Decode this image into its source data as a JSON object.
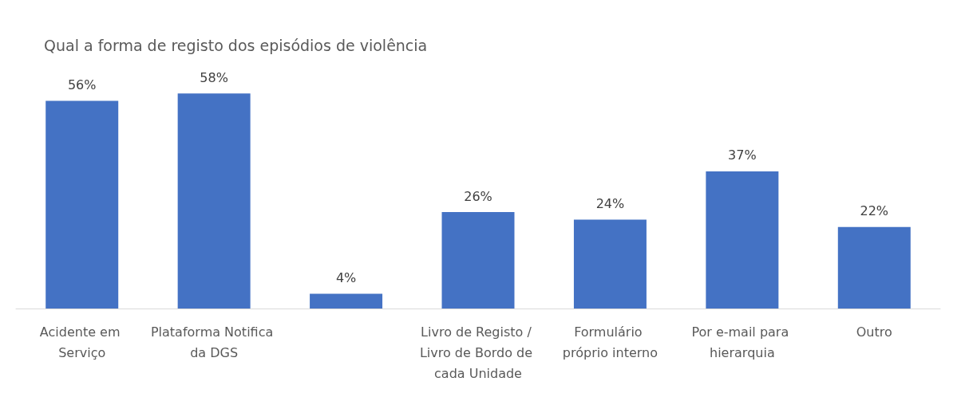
{
  "chart_data": {
    "type": "bar",
    "title": "Qual a forma de registo dos episódios de violência",
    "categories": [
      "Acidente em Serviço",
      "Plataforma Notifica da DGS",
      null,
      "Livro de Registo / Livro de Bordo de cada Unidade",
      "Formulário próprio interno",
      "Por e-mail para hierarquia",
      "Outro"
    ],
    "values": [
      56,
      58,
      4,
      26,
      24,
      37,
      22
    ],
    "value_labels": [
      "56%",
      "58%",
      "4%",
      "26%",
      "24%",
      "37%",
      "22%"
    ],
    "color": "#4472c4"
  }
}
